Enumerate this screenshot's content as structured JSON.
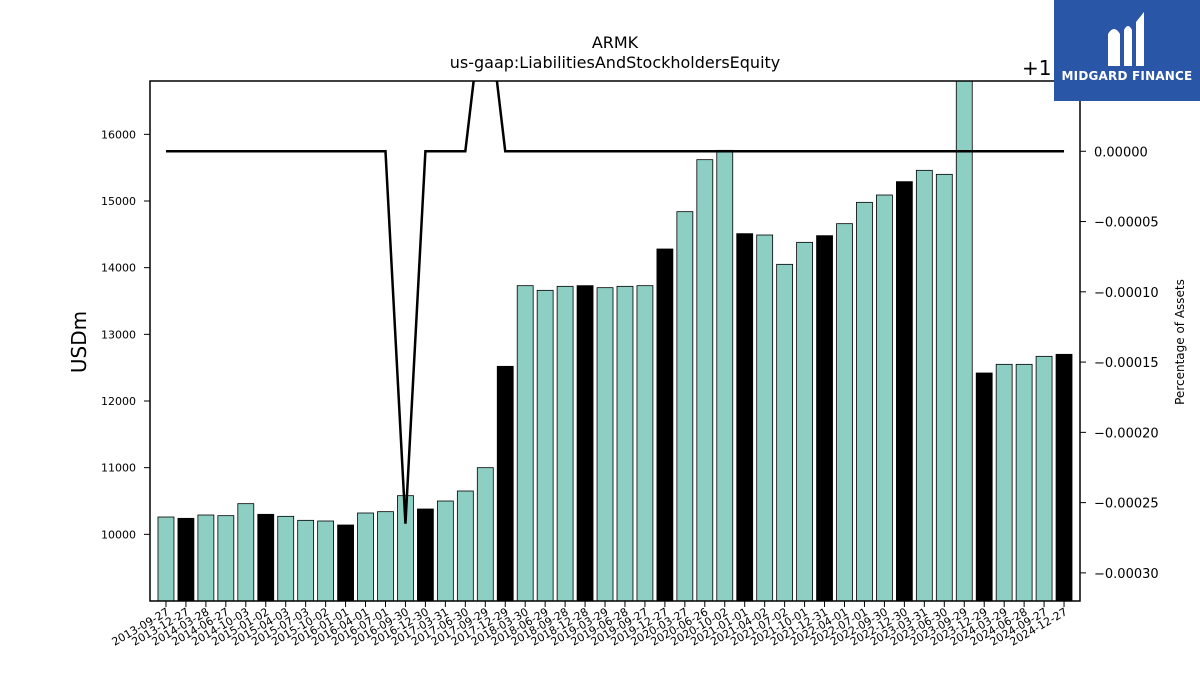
{
  "chart_data": {
    "type": "bar",
    "title": "ARMK",
    "subtitle": "us-gaap:LiabilitiesAndStockholdersEquity",
    "ylabel": "USDm",
    "y2label": "Percentage of Assets",
    "y2_offset_label": "+1",
    "ylim": [
      9000,
      16800
    ],
    "y2lim": [
      -0.00032,
      5e-05
    ],
    "yticks": [
      10000,
      11000,
      12000,
      13000,
      14000,
      15000,
      16000
    ],
    "y2ticks": [
      "0.00000",
      "−0.00005",
      "−0.00010",
      "−0.00015",
      "−0.00020",
      "−0.00025",
      "−0.00030"
    ],
    "y2tick_values": [
      0.0,
      -5e-05,
      -0.0001,
      -0.00015,
      -0.0002,
      -0.00025,
      -0.0003
    ],
    "categories": [
      "2013-09-27",
      "2013-12-27",
      "2014-03-28",
      "2014-06-27",
      "2014-10-03",
      "2015-01-02",
      "2015-04-03",
      "2015-07-03",
      "2015-10-02",
      "2016-01-01",
      "2016-04-01",
      "2016-07-01",
      "2016-09-30",
      "2016-12-30",
      "2017-03-31",
      "2017-06-30",
      "2017-09-29",
      "2017-12-29",
      "2018-03-30",
      "2018-06-29",
      "2018-09-28",
      "2018-12-28",
      "2019-03-29",
      "2019-06-28",
      "2019-09-27",
      "2019-12-27",
      "2020-03-27",
      "2020-06-26",
      "2020-10-02",
      "2021-01-01",
      "2021-04-02",
      "2021-07-02",
      "2021-10-01",
      "2021-12-31",
      "2022-04-01",
      "2022-07-01",
      "2022-09-30",
      "2022-12-30",
      "2023-03-31",
      "2023-06-30",
      "2023-09-29",
      "2023-12-29",
      "2024-03-29",
      "2024-06-28",
      "2024-09-27",
      "2024-12-27"
    ],
    "values": [
      10260,
      10240,
      10290,
      10280,
      10460,
      10300,
      10270,
      10210,
      10200,
      10140,
      10320,
      10340,
      10580,
      10380,
      10500,
      10650,
      11000,
      12520,
      13730,
      13660,
      13720,
      13730,
      13700,
      13720,
      13730,
      14280,
      14840,
      15620,
      15760,
      14510,
      14490,
      14050,
      14380,
      14480,
      14660,
      14980,
      15090,
      15290,
      15460,
      15400,
      16950,
      12420,
      12550,
      12550,
      12670,
      12700
    ],
    "highlight": [
      false,
      true,
      false,
      false,
      false,
      true,
      false,
      false,
      false,
      true,
      false,
      false,
      false,
      true,
      false,
      false,
      false,
      true,
      false,
      false,
      false,
      true,
      false,
      false,
      false,
      true,
      false,
      false,
      false,
      true,
      false,
      false,
      false,
      true,
      false,
      false,
      false,
      true,
      false,
      false,
      false,
      true,
      false,
      false,
      false,
      true
    ],
    "line_values": [
      0,
      0,
      0,
      0,
      0,
      0,
      0,
      0,
      0,
      0,
      0,
      0,
      -0.000265,
      0,
      0,
      0,
      0.00012,
      0,
      0,
      0,
      0,
      0,
      0,
      0,
      0,
      0,
      0,
      0,
      0,
      0,
      0,
      0,
      0,
      0,
      0,
      0,
      0,
      0,
      0,
      0,
      0,
      0,
      0,
      0,
      0,
      0
    ],
    "colors": {
      "bar": "#8ecfc4",
      "highlight": "#000000",
      "line": "#000000"
    }
  },
  "logo": {
    "text": "MIDGARD FINANCE"
  }
}
